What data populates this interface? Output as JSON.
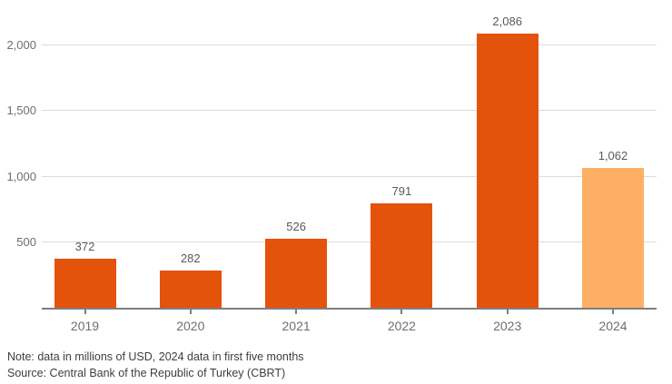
{
  "chart_data": {
    "type": "bar",
    "categories": [
      "2019",
      "2020",
      "2021",
      "2022",
      "2023",
      "2024"
    ],
    "values": [
      372,
      282,
      526,
      791,
      2086,
      1062
    ],
    "value_labels": [
      "372",
      "282",
      "526",
      "791",
      "2,086",
      "1,062"
    ],
    "bar_colors": [
      "#e4530c",
      "#e4530c",
      "#e4530c",
      "#e4530c",
      "#e4530c",
      "#fdb064"
    ],
    "title": "",
    "xlabel": "",
    "ylabel": "",
    "ylim": [
      0,
      2150
    ],
    "yticks": [
      500,
      1000,
      1500,
      2000
    ],
    "ytick_labels": [
      "500",
      "1,000",
      "1,500",
      "2,000"
    ],
    "grid": true,
    "legend": false,
    "highlight_note": "2024 bar shown in lighter orange (partial-year data)"
  },
  "colors": {
    "bar_primary": "#e4530c",
    "bar_highlight": "#fdb064",
    "gridline": "#dbdbdb",
    "axis_line": "#7e7e7e",
    "tick_label": "#6e6e6e",
    "value_label": "#595959",
    "note_text": "#3e3e3e"
  },
  "footer": {
    "note": "Note: data in millions of USD, 2024 data in first five months",
    "source": "Source: Central Bank of the Republic of Turkey (CBRT)"
  }
}
